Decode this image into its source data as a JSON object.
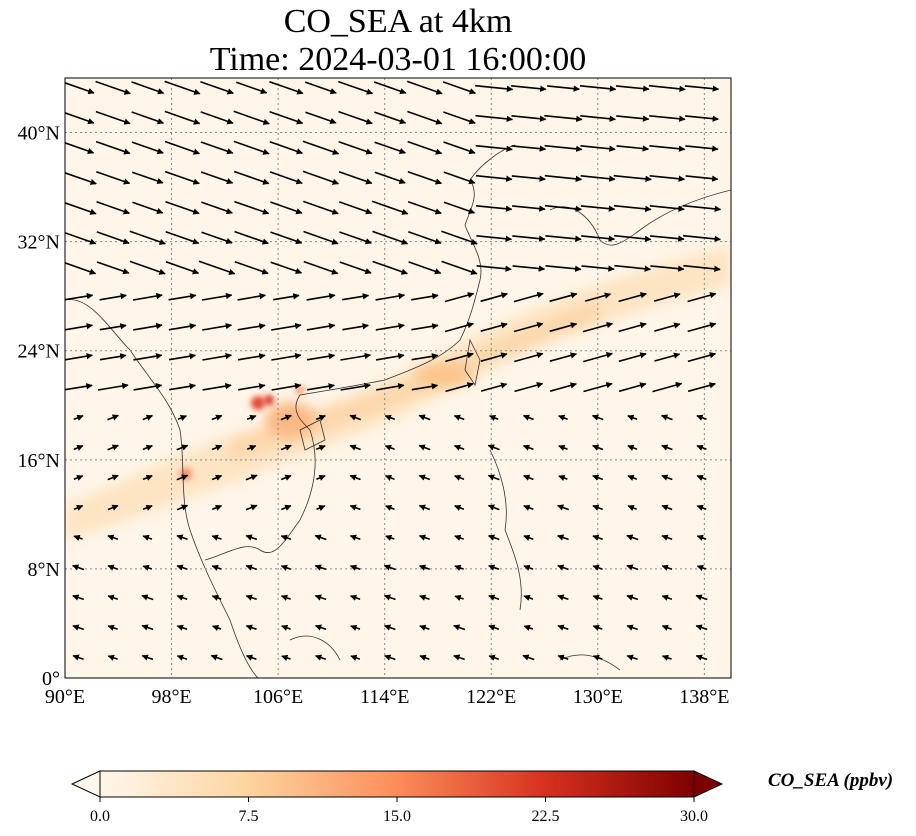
{
  "title": {
    "line1": "CO_SEA at 4km",
    "line2": "Time: 2024-03-01 16:00:00"
  },
  "map": {
    "projection": "PlateCarree",
    "lon_range": [
      90,
      140
    ],
    "lat_range": [
      0,
      44
    ],
    "x_ticks": [
      {
        "value": 90,
        "label": "90°E"
      },
      {
        "value": 98,
        "label": "98°E"
      },
      {
        "value": 106,
        "label": "106°E"
      },
      {
        "value": 114,
        "label": "114°E"
      },
      {
        "value": 122,
        "label": "122°E"
      },
      {
        "value": 130,
        "label": "130°E"
      },
      {
        "value": 138,
        "label": "138°E"
      }
    ],
    "y_ticks": [
      {
        "value": 0,
        "label": "0°"
      },
      {
        "value": 8,
        "label": "8°N"
      },
      {
        "value": 16,
        "label": "16°N"
      },
      {
        "value": 24,
        "label": "24°N"
      },
      {
        "value": 32,
        "label": "32°N"
      },
      {
        "value": 40,
        "label": "40°N"
      }
    ],
    "gridlines": "dotted",
    "field": "CO_SEA",
    "features": [
      "coastlines",
      "country borders",
      "wind vectors"
    ]
  },
  "colorbar": {
    "label": "CO_SEA (ppbv)",
    "min": 0.0,
    "max": 30.0,
    "extend": "both",
    "colormap": "OrRd",
    "ticks": [
      {
        "value": 0.0,
        "label": "0.0"
      },
      {
        "value": 7.5,
        "label": "7.5"
      },
      {
        "value": 15.0,
        "label": "15.0"
      },
      {
        "value": 22.5,
        "label": "22.5"
      },
      {
        "value": 30.0,
        "label": "30.0"
      }
    ],
    "colors": [
      "#fff7ec",
      "#fdd49e",
      "#fc8d59",
      "#d7301f",
      "#7f0000"
    ]
  }
}
